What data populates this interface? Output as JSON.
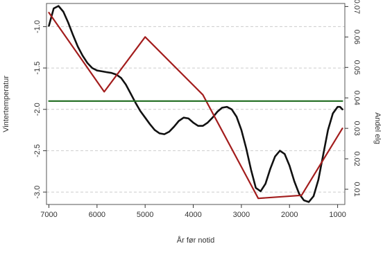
{
  "chart_data": {
    "type": "line",
    "title": "",
    "xlabel": "År før notid",
    "ylabel_left": "Vintertemperatur",
    "ylabel_right": "Andel elg",
    "x_reversed": true,
    "xlim": [
      7050,
      850
    ],
    "ylim_left": [
      -3.15,
      -0.72
    ],
    "ylim_right": [
      0.005,
      0.071
    ],
    "x_ticks": [
      7000,
      6000,
      5000,
      4000,
      3000,
      2000,
      1000
    ],
    "x_tick_labels": [
      "7000",
      "6000",
      "5000",
      "4000",
      "3000",
      "2000",
      "1000"
    ],
    "y_left_ticks": [
      -1.0,
      -1.5,
      -2.0,
      -2.5,
      -3.0
    ],
    "y_left_tick_labels": [
      "-1.0",
      "-1.5",
      "-2.0",
      "-2.5",
      "-3.0"
    ],
    "y_right_ticks": [
      0.01,
      0.02,
      0.03,
      0.04,
      0.05,
      0.06,
      0.07
    ],
    "y_right_tick_labels": [
      "0.01",
      "0.02",
      "0.03",
      "0.04",
      "0.05",
      "0.06",
      "0.07"
    ],
    "grid": "horizontal-dashed",
    "series": [
      {
        "axis": "left",
        "color": "#111111",
        "x": [
          7000,
          6900,
          6800,
          6700,
          6600,
          6500,
          6400,
          6300,
          6200,
          6100,
          6000,
          5900,
          5800,
          5700,
          5600,
          5500,
          5400,
          5300,
          5200,
          5100,
          5000,
          4900,
          4800,
          4700,
          4600,
          4500,
          4400,
          4300,
          4200,
          4100,
          4000,
          3900,
          3800,
          3700,
          3600,
          3500,
          3400,
          3300,
          3200,
          3100,
          3000,
          2900,
          2800,
          2700,
          2600,
          2500,
          2400,
          2300,
          2200,
          2100,
          2000,
          1900,
          1800,
          1700,
          1600,
          1500,
          1400,
          1300,
          1200,
          1100,
          1000,
          950,
          900
        ],
        "y": [
          -0.99,
          -0.78,
          -0.75,
          -0.82,
          -0.95,
          -1.1,
          -1.24,
          -1.35,
          -1.44,
          -1.5,
          -1.53,
          -1.54,
          -1.55,
          -1.56,
          -1.58,
          -1.62,
          -1.7,
          -1.81,
          -1.92,
          -2.02,
          -2.1,
          -2.18,
          -2.25,
          -2.29,
          -2.3,
          -2.27,
          -2.21,
          -2.14,
          -2.1,
          -2.11,
          -2.16,
          -2.2,
          -2.2,
          -2.16,
          -2.1,
          -2.03,
          -1.98,
          -1.97,
          -2.0,
          -2.09,
          -2.25,
          -2.47,
          -2.73,
          -2.95,
          -2.99,
          -2.9,
          -2.72,
          -2.57,
          -2.5,
          -2.54,
          -2.68,
          -2.87,
          -3.02,
          -3.1,
          -3.12,
          -3.05,
          -2.85,
          -2.55,
          -2.25,
          -2.05,
          -1.97,
          -1.97,
          -2.0
        ]
      },
      {
        "axis": "right",
        "color": "#a31d1d",
        "x": [
          7000,
          5850,
          5000,
          3800,
          2650,
          1750,
          900
        ],
        "y": [
          0.068,
          0.042,
          0.06,
          0.041,
          0.007,
          0.008,
          0.03
        ]
      },
      {
        "axis": "left",
        "color": "#1e6b1e",
        "x": [
          7000,
          900
        ],
        "y": [
          -1.9,
          -1.9
        ]
      }
    ]
  }
}
